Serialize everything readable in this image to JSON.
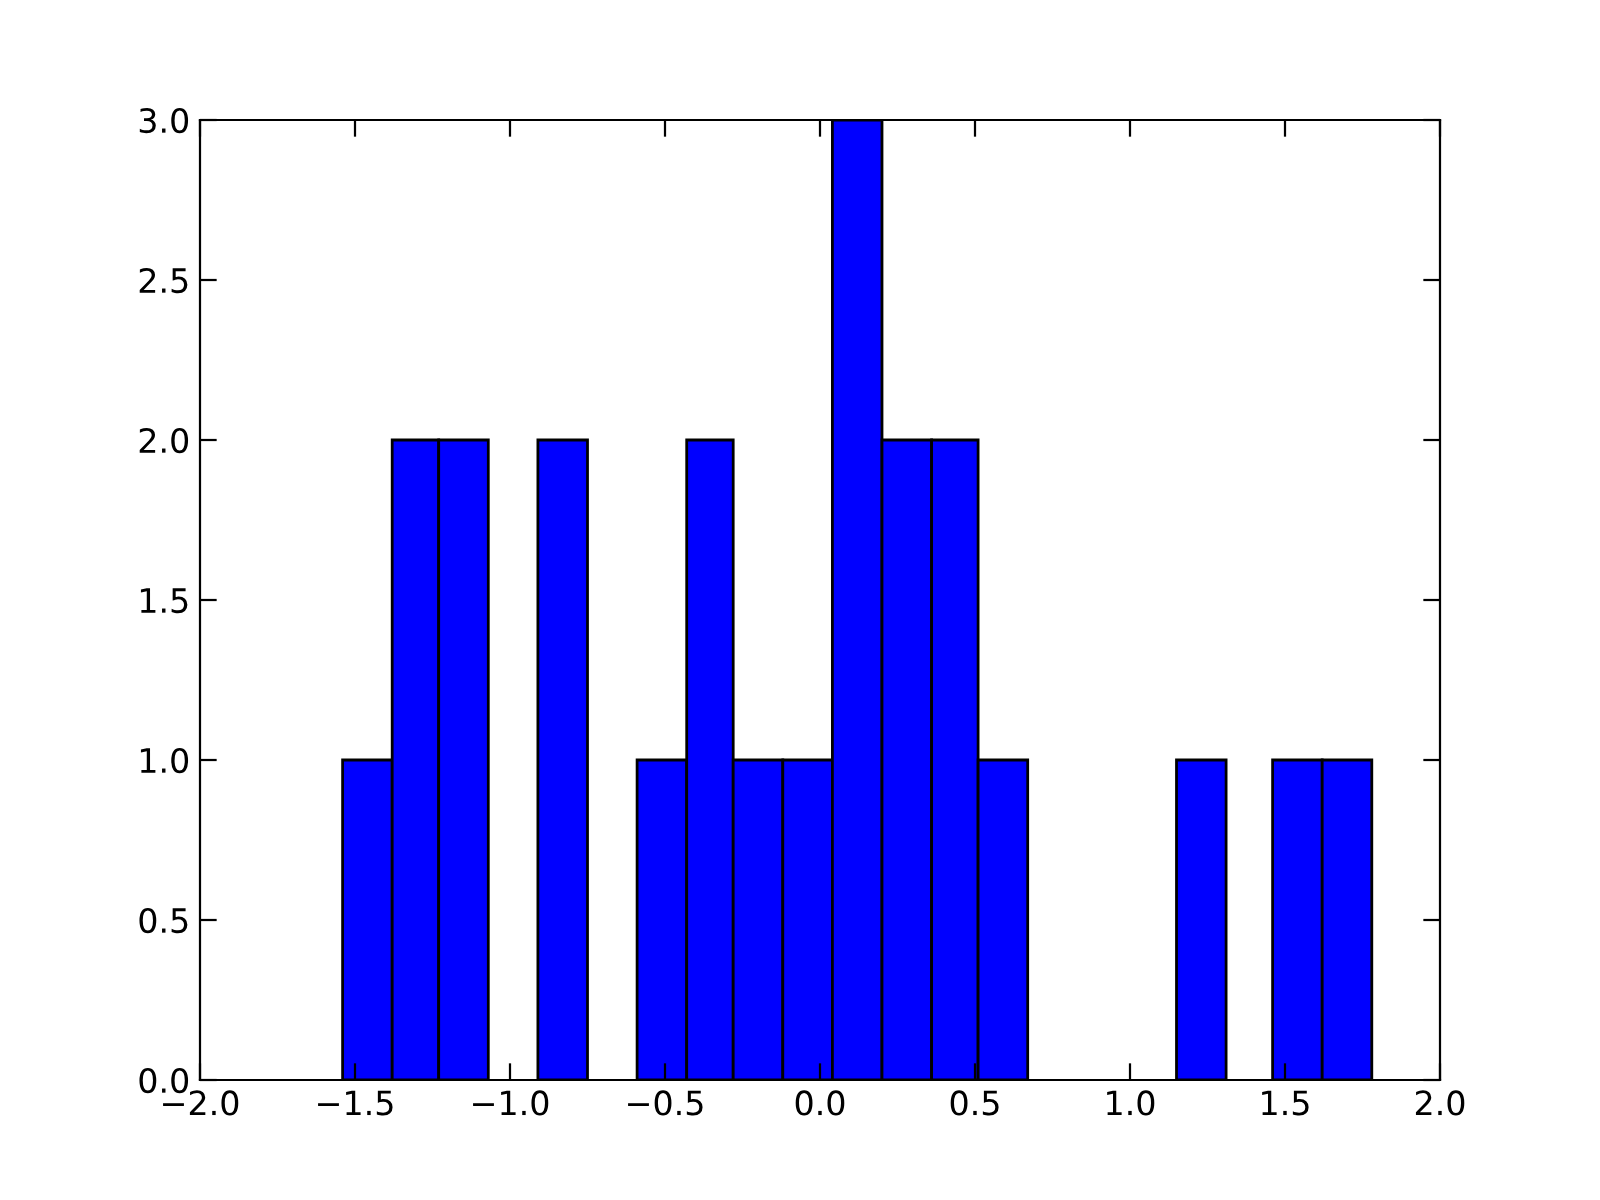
{
  "chart_data": {
    "type": "histogram",
    "bins": [
      -1.54,
      -1.38,
      -1.23,
      -1.07,
      -0.91,
      -0.75,
      -0.59,
      -0.43,
      -0.28,
      -0.12,
      0.04,
      0.2,
      0.36,
      0.51,
      0.67,
      1.15,
      1.31,
      1.46,
      1.62,
      1.78
    ],
    "values": [
      1,
      2,
      2,
      0,
      2,
      0,
      1,
      2,
      1,
      1,
      3,
      2,
      2,
      1,
      0,
      1,
      0,
      1,
      1
    ],
    "color": "#0000ff",
    "xlim": [
      -2.0,
      2.0
    ],
    "xticks": [
      {
        "value": -2,
        "label": "−2.0"
      },
      {
        "value": -1.5,
        "label": "−1.5"
      },
      {
        "value": -1,
        "label": "−1.0"
      },
      {
        "value": -0.5,
        "label": "−0.5"
      },
      {
        "value": 0,
        "label": "0.0"
      },
      {
        "value": 0.5,
        "label": "0.5"
      },
      {
        "value": 1,
        "label": "1.0"
      },
      {
        "value": 1.5,
        "label": "1.5"
      },
      {
        "value": 2,
        "label": "2.0"
      }
    ],
    "ylim": [
      0.0,
      3.0
    ],
    "yticks": [
      {
        "value": 0,
        "label": "0.0"
      },
      {
        "value": 0.5,
        "label": "0.5"
      },
      {
        "value": 1,
        "label": "1.0"
      },
      {
        "value": 1.5,
        "label": "1.5"
      },
      {
        "value": 2,
        "label": "2.0"
      },
      {
        "value": 2.5,
        "label": "2.5"
      },
      {
        "value": 3,
        "label": "3.0"
      }
    ],
    "grid": false
  }
}
